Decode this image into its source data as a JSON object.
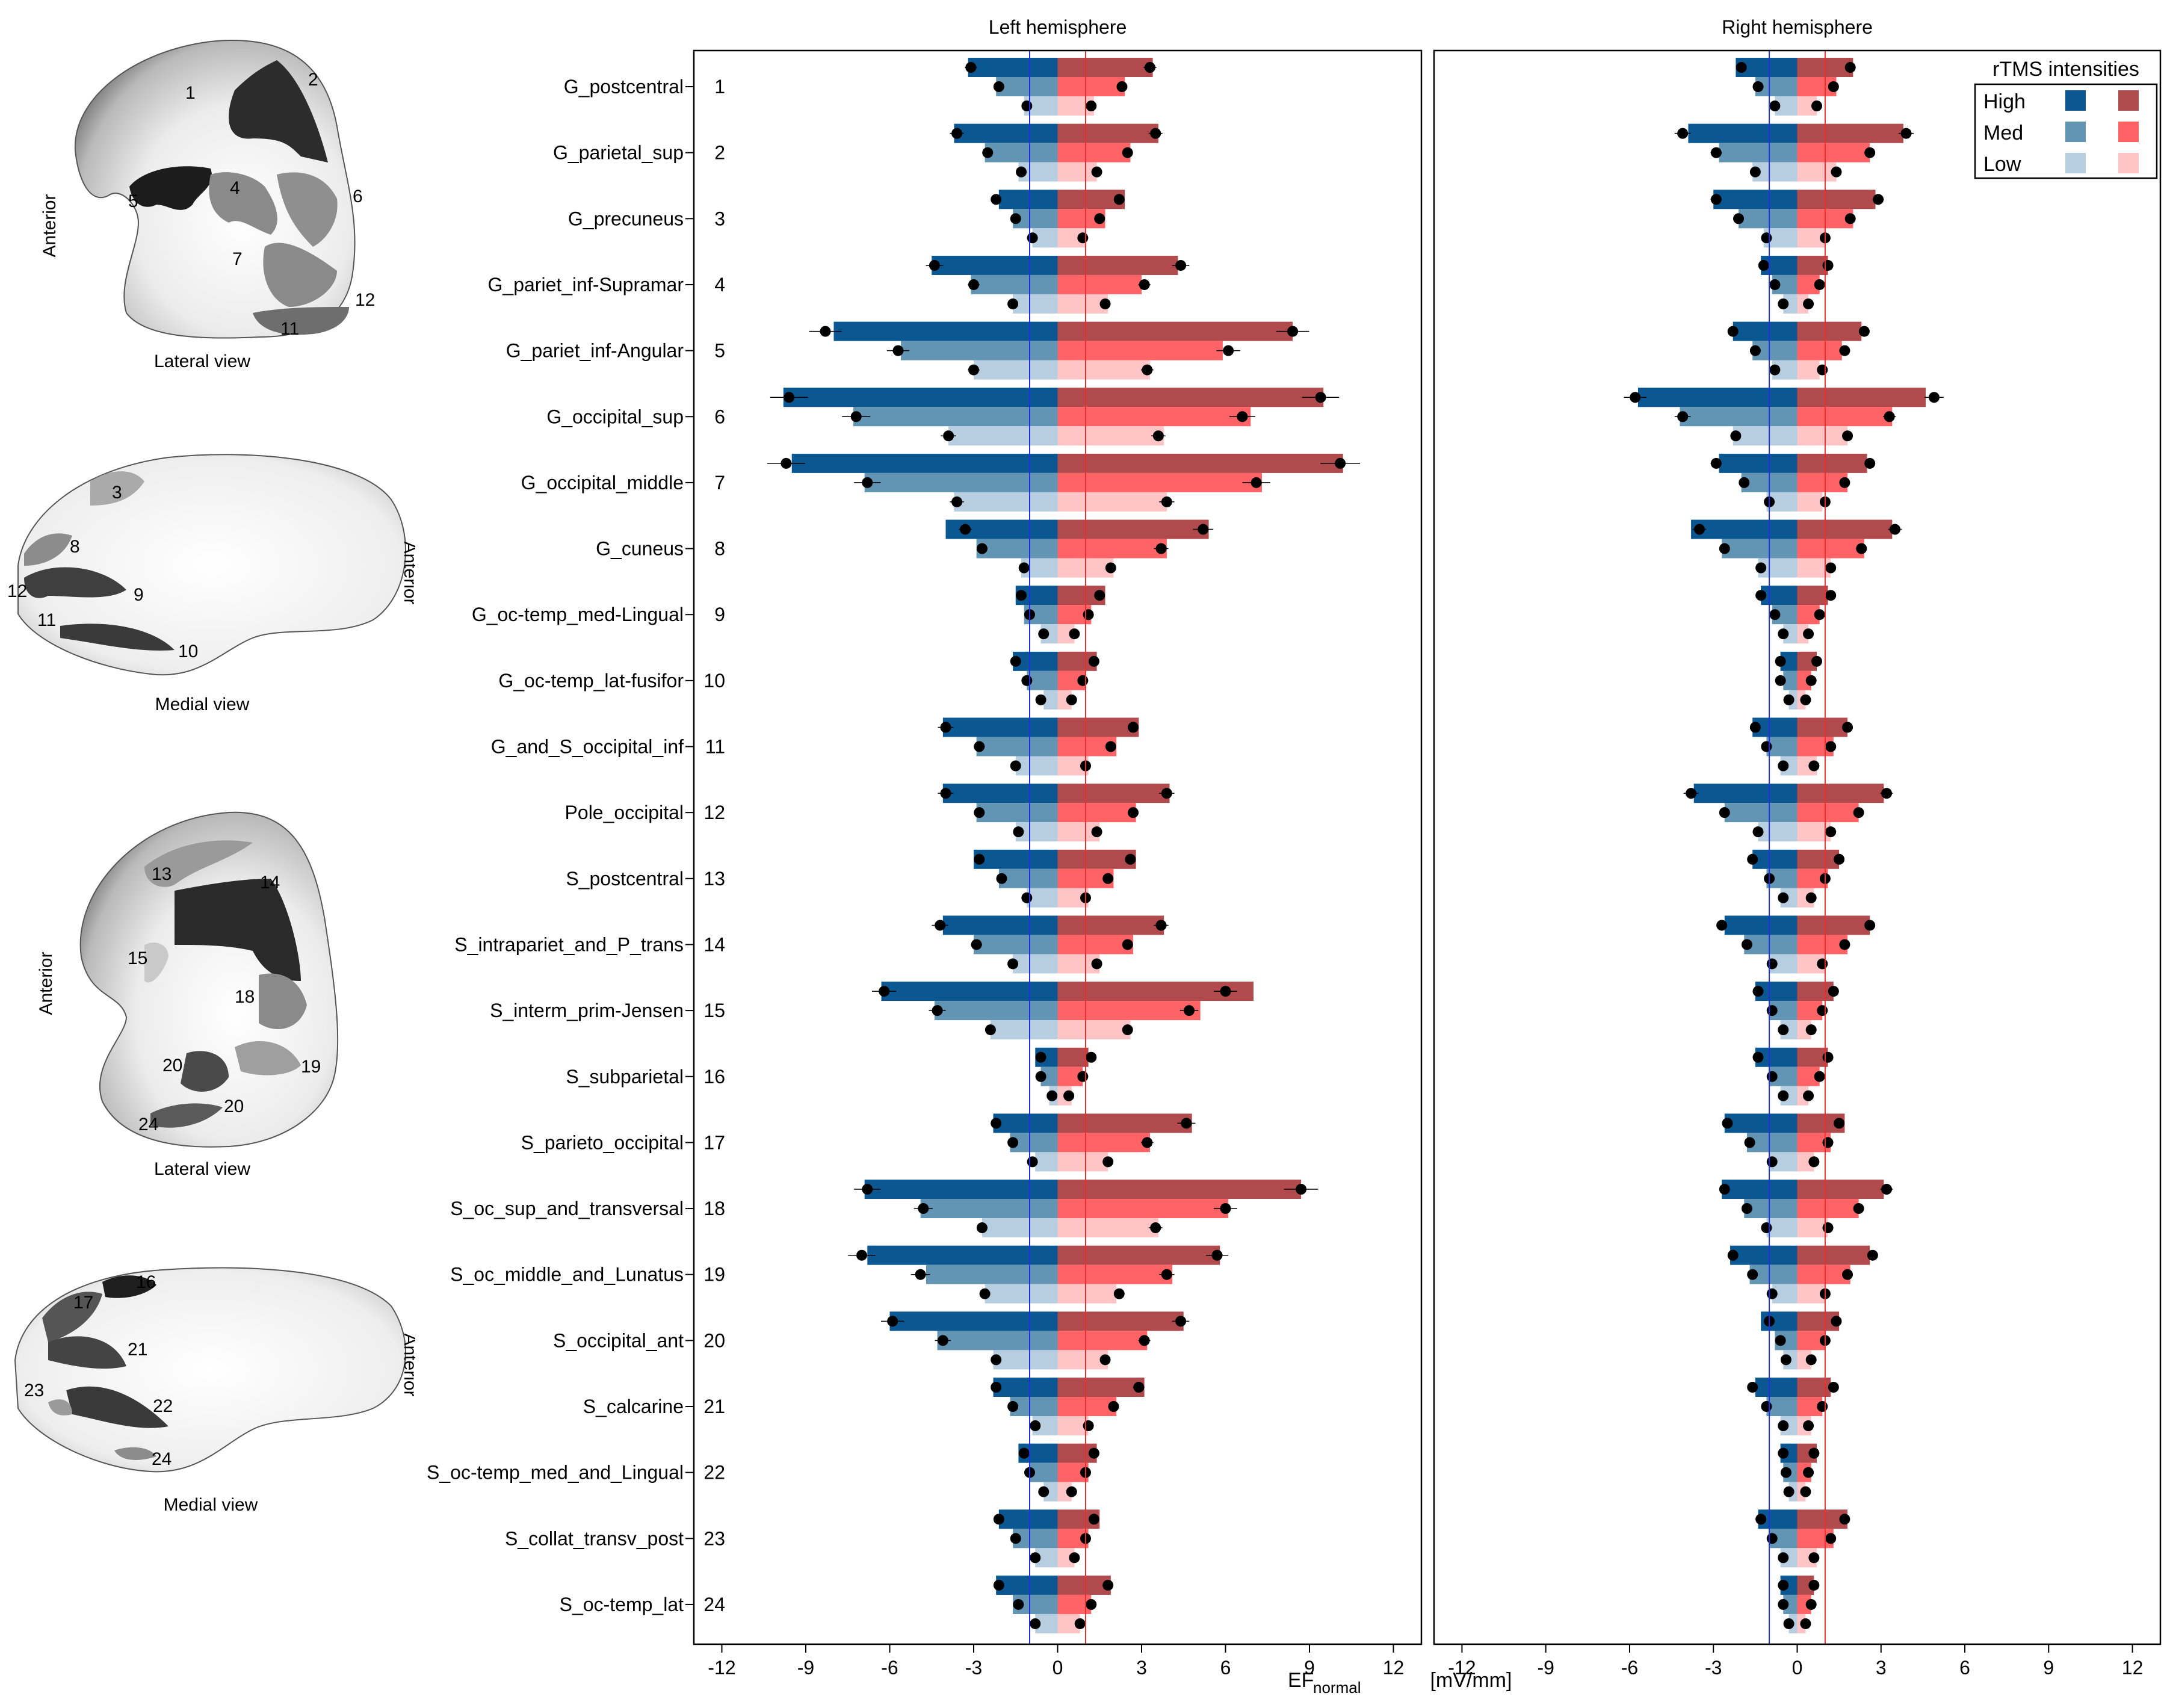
{
  "figure": {
    "xlabel_main": "EF",
    "xlabel_sub": "normal",
    "xlabel_unit": " [mV/mm]",
    "legend_title": "rTMS intensities",
    "legend_levels": [
      "High",
      "Med",
      "Low"
    ]
  },
  "colors": {
    "neg_high": "#0b5791",
    "neg_med": "#6294b4",
    "neg_low": "#b6cee0",
    "pos_high": "#b14a4c",
    "pos_med": "#ff6366",
    "pos_low": "#ffc4c5",
    "line_neg": "#2030e8",
    "line_pos": "#e83030"
  },
  "brains": {
    "panels": [
      {
        "caption": "Lateral view",
        "side_label": "Anterior",
        "labels": [
          {
            "n": "1"
          },
          {
            "n": "2"
          },
          {
            "n": "4"
          },
          {
            "n": "5"
          },
          {
            "n": "6"
          },
          {
            "n": "7"
          },
          {
            "n": "11"
          },
          {
            "n": "12"
          }
        ]
      },
      {
        "caption": "Medial view",
        "side_label": "Anterior",
        "labels": [
          {
            "n": "3"
          },
          {
            "n": "8"
          },
          {
            "n": "9"
          },
          {
            "n": "10"
          },
          {
            "n": "11"
          },
          {
            "n": "12"
          }
        ]
      },
      {
        "caption": "Lateral view",
        "side_label": "Anterior",
        "labels": [
          {
            "n": "13"
          },
          {
            "n": "14"
          },
          {
            "n": "15"
          },
          {
            "n": "18"
          },
          {
            "n": "19"
          },
          {
            "n": "20"
          },
          {
            "n": "20"
          },
          {
            "n": "24"
          }
        ]
      },
      {
        "caption": "Medial view",
        "side_label": "Anterior",
        "labels": [
          {
            "n": "16"
          },
          {
            "n": "17"
          },
          {
            "n": "21"
          },
          {
            "n": "22"
          },
          {
            "n": "23"
          },
          {
            "n": "24"
          }
        ]
      }
    ]
  },
  "chart_data": [
    {
      "type": "bar",
      "orientation": "horizontal",
      "title": "Left hemisphere",
      "xlim": [
        -13,
        13
      ],
      "xticks": [
        "-12",
        "-9",
        "-6",
        "-3",
        "0",
        "3",
        "6",
        "9",
        "12"
      ],
      "ref_lines": [
        -1,
        1
      ],
      "grid": false,
      "categories": [
        "G_postcentral",
        "G_parietal_sup",
        "G_precuneus",
        "G_pariet_inf-Supramar",
        "G_pariet_inf-Angular",
        "G_occipital_sup",
        "G_occipital_middle",
        "G_cuneus",
        "G_oc-temp_med-Lingual",
        "G_oc-temp_lat-fusifor",
        "G_and_S_occipital_inf",
        "Pole_occipital",
        "S_postcentral",
        "S_intrapariet_and_P_trans",
        "S_interm_prim-Jensen",
        "S_subparietal",
        "S_parieto_occipital",
        "S_oc_sup_and_transversal",
        "S_oc_middle_and_Lunatus",
        "S_occipital_ant",
        "S_calcarine",
        "S_oc-temp_med_and_Lingual",
        "S_collat_transv_post",
        "S_oc-temp_lat"
      ],
      "row_numbers": [
        "1",
        "2",
        "3",
        "4",
        "5",
        "6",
        "7",
        "8",
        "9",
        "10",
        "11",
        "12",
        "13",
        "14",
        "15",
        "16",
        "17",
        "18",
        "19",
        "20",
        "21",
        "22",
        "23",
        "24"
      ],
      "series": [
        {
          "name": "High",
          "side": "negative",
          "bar": [
            -3.2,
            -3.7,
            -2.1,
            -4.5,
            -8.0,
            -9.8,
            -9.5,
            -4.0,
            -1.5,
            -1.6,
            -4.1,
            -4.1,
            -3.0,
            -4.1,
            -6.3,
            -0.8,
            -2.3,
            -6.9,
            -6.8,
            -6.0,
            -2.3,
            -1.4,
            -2.1,
            -2.2
          ],
          "point": [
            -3.1,
            -3.6,
            -2.2,
            -4.4,
            -8.3,
            -9.6,
            -9.7,
            -3.3,
            -1.3,
            -1.5,
            -4.0,
            -4.0,
            -2.8,
            -4.2,
            -6.2,
            -0.6,
            -2.2,
            -6.8,
            -7.0,
            -5.9,
            -2.2,
            -1.2,
            -2.1,
            -2.1
          ]
        },
        {
          "name": "Med",
          "side": "negative",
          "bar": [
            -2.2,
            -2.6,
            -1.6,
            -3.1,
            -5.6,
            -7.3,
            -6.9,
            -2.9,
            -1.2,
            -1.1,
            -2.9,
            -2.9,
            -2.1,
            -3.0,
            -4.4,
            -0.6,
            -1.7,
            -4.9,
            -4.7,
            -4.3,
            -1.7,
            -1.0,
            -1.6,
            -1.6
          ],
          "point": [
            -2.1,
            -2.5,
            -1.5,
            -3.0,
            -5.7,
            -7.2,
            -6.8,
            -2.7,
            -1.0,
            -1.1,
            -2.8,
            -2.8,
            -2.0,
            -2.9,
            -4.3,
            -0.6,
            -1.6,
            -4.8,
            -4.9,
            -4.1,
            -1.6,
            -1.0,
            -1.5,
            -1.4
          ]
        },
        {
          "name": "Low",
          "side": "negative",
          "bar": [
            -1.2,
            -1.4,
            -0.9,
            -1.6,
            -3.0,
            -3.9,
            -3.7,
            -1.3,
            -0.6,
            -0.5,
            -1.5,
            -1.5,
            -1.1,
            -1.6,
            -2.4,
            -0.3,
            -0.8,
            -2.7,
            -2.6,
            -2.3,
            -0.9,
            -0.5,
            -0.8,
            -0.8
          ],
          "point": [
            -1.1,
            -1.3,
            -0.9,
            -1.6,
            -3.0,
            -3.9,
            -3.6,
            -1.2,
            -0.5,
            -0.6,
            -1.5,
            -1.4,
            -1.1,
            -1.6,
            -2.4,
            -0.2,
            -0.9,
            -2.7,
            -2.6,
            -2.2,
            -0.8,
            -0.5,
            -0.8,
            -0.8
          ]
        },
        {
          "name": "High",
          "side": "positive",
          "bar": [
            3.4,
            3.6,
            2.4,
            4.3,
            8.4,
            9.5,
            10.2,
            5.4,
            1.7,
            1.4,
            2.9,
            4.0,
            2.8,
            3.8,
            7.0,
            1.1,
            4.8,
            8.7,
            5.8,
            4.5,
            3.1,
            1.4,
            1.5,
            1.9
          ],
          "point": [
            3.3,
            3.5,
            2.2,
            4.4,
            8.4,
            9.4,
            10.1,
            5.2,
            1.5,
            1.3,
            2.7,
            3.9,
            2.6,
            3.7,
            6.0,
            1.2,
            4.6,
            8.7,
            5.7,
            4.4,
            2.9,
            1.3,
            1.3,
            1.8
          ]
        },
        {
          "name": "Med",
          "side": "positive",
          "bar": [
            2.4,
            2.6,
            1.7,
            3.0,
            5.9,
            6.9,
            7.3,
            3.9,
            1.2,
            1.0,
            2.1,
            2.8,
            2.0,
            2.7,
            5.1,
            0.9,
            3.3,
            6.1,
            4.1,
            3.2,
            2.1,
            1.1,
            1.1,
            1.2
          ],
          "point": [
            2.3,
            2.5,
            1.5,
            3.1,
            6.1,
            6.6,
            7.1,
            3.7,
            1.1,
            0.9,
            1.9,
            2.7,
            1.8,
            2.5,
            4.7,
            0.9,
            3.2,
            6.0,
            3.9,
            3.1,
            2.0,
            1.0,
            1.0,
            1.2
          ]
        },
        {
          "name": "Low",
          "side": "positive",
          "bar": [
            1.3,
            1.4,
            1.0,
            1.8,
            3.3,
            3.8,
            3.9,
            2.0,
            0.6,
            0.5,
            1.1,
            1.5,
            1.1,
            1.5,
            2.6,
            0.5,
            1.8,
            3.6,
            2.1,
            1.8,
            1.1,
            0.5,
            0.6,
            0.8
          ],
          "point": [
            1.2,
            1.4,
            0.9,
            1.7,
            3.2,
            3.6,
            3.9,
            1.9,
            0.6,
            0.5,
            1.0,
            1.4,
            1.0,
            1.4,
            2.5,
            0.4,
            1.8,
            3.5,
            2.2,
            1.7,
            1.1,
            0.5,
            0.6,
            0.8
          ]
        }
      ]
    },
    {
      "type": "bar",
      "orientation": "horizontal",
      "title": "Right hemisphere",
      "xlim": [
        -13,
        13
      ],
      "xticks": [
        "-12",
        "-9",
        "-6",
        "-3",
        "0",
        "3",
        "6",
        "9",
        "12"
      ],
      "ref_lines": [
        -1,
        1
      ],
      "grid": false,
      "legend_position": "top-right",
      "categories": [
        "G_postcentral",
        "G_parietal_sup",
        "G_precuneus",
        "G_pariet_inf-Supramar",
        "G_pariet_inf-Angular",
        "G_occipital_sup",
        "G_occipital_middle",
        "G_cuneus",
        "G_oc-temp_med-Lingual",
        "G_oc-temp_lat-fusifor",
        "G_and_S_occipital_inf",
        "Pole_occipital",
        "S_postcentral",
        "S_intrapariet_and_P_trans",
        "S_interm_prim-Jensen",
        "S_subparietal",
        "S_parieto_occipital",
        "S_oc_sup_and_transversal",
        "S_oc_middle_and_Lunatus",
        "S_occipital_ant",
        "S_calcarine",
        "S_oc-temp_med_and_Lingual",
        "S_collat_transv_post",
        "S_oc-temp_lat"
      ],
      "series": [
        {
          "name": "High",
          "side": "negative",
          "bar": [
            -2.2,
            -3.9,
            -3.0,
            -1.3,
            -2.3,
            -5.7,
            -2.8,
            -3.8,
            -1.3,
            -0.6,
            -1.6,
            -3.7,
            -1.6,
            -2.6,
            -1.5,
            -1.5,
            -2.6,
            -2.7,
            -2.4,
            -1.3,
            -1.5,
            -0.6,
            -1.4,
            -0.6
          ],
          "point": [
            -2.0,
            -4.1,
            -2.9,
            -1.2,
            -2.3,
            -5.8,
            -2.9,
            -3.5,
            -1.3,
            -0.6,
            -1.5,
            -3.8,
            -1.6,
            -2.7,
            -1.4,
            -1.4,
            -2.5,
            -2.6,
            -2.3,
            -1.0,
            -1.6,
            -0.5,
            -1.3,
            -0.5
          ]
        },
        {
          "name": "Med",
          "side": "negative",
          "bar": [
            -1.5,
            -2.8,
            -2.1,
            -0.9,
            -1.6,
            -4.2,
            -2.0,
            -2.7,
            -0.9,
            -0.5,
            -1.1,
            -2.6,
            -1.1,
            -1.9,
            -1.0,
            -1.0,
            -1.8,
            -1.9,
            -1.7,
            -0.8,
            -1.1,
            -0.5,
            -1.0,
            -0.5
          ],
          "point": [
            -1.4,
            -2.9,
            -2.1,
            -0.8,
            -1.5,
            -4.1,
            -1.9,
            -2.6,
            -0.8,
            -0.6,
            -1.1,
            -2.6,
            -1.0,
            -1.8,
            -0.9,
            -0.9,
            -1.7,
            -1.8,
            -1.6,
            -0.6,
            -1.1,
            -0.4,
            -0.9,
            -0.5
          ]
        },
        {
          "name": "Low",
          "side": "negative",
          "bar": [
            -0.8,
            -1.6,
            -1.2,
            -0.5,
            -0.9,
            -2.3,
            -1.1,
            -1.4,
            -0.5,
            -0.3,
            -0.6,
            -1.4,
            -0.6,
            -1.0,
            -0.6,
            -0.6,
            -1.0,
            -1.1,
            -0.9,
            -0.5,
            -0.6,
            -0.3,
            -0.6,
            -0.3
          ],
          "point": [
            -0.8,
            -1.5,
            -1.1,
            -0.5,
            -0.8,
            -2.2,
            -1.0,
            -1.3,
            -0.5,
            -0.3,
            -0.5,
            -1.4,
            -0.5,
            -0.9,
            -0.5,
            -0.5,
            -0.9,
            -1.1,
            -0.9,
            -0.4,
            -0.5,
            -0.3,
            -0.5,
            -0.3
          ]
        },
        {
          "name": "High",
          "side": "positive",
          "bar": [
            2.0,
            3.8,
            2.8,
            1.1,
            2.3,
            4.6,
            2.5,
            3.4,
            1.1,
            0.7,
            1.8,
            3.1,
            1.5,
            2.6,
            1.3,
            1.1,
            1.7,
            3.1,
            2.6,
            1.5,
            1.2,
            0.7,
            1.8,
            0.6
          ],
          "point": [
            1.9,
            3.9,
            2.9,
            1.1,
            2.4,
            4.9,
            2.6,
            3.5,
            1.2,
            0.7,
            1.8,
            3.2,
            1.5,
            2.6,
            1.3,
            1.1,
            1.5,
            3.2,
            2.7,
            1.4,
            1.3,
            0.6,
            1.7,
            0.6
          ]
        },
        {
          "name": "Med",
          "side": "positive",
          "bar": [
            1.4,
            2.6,
            2.0,
            0.8,
            1.6,
            3.4,
            1.8,
            2.4,
            0.8,
            0.5,
            1.3,
            2.2,
            1.1,
            1.8,
            0.9,
            0.8,
            1.2,
            2.2,
            1.9,
            1.0,
            0.9,
            0.5,
            1.3,
            0.5
          ],
          "point": [
            1.3,
            2.6,
            1.9,
            0.8,
            1.7,
            3.3,
            1.7,
            2.3,
            0.8,
            0.5,
            1.2,
            2.2,
            1.0,
            1.7,
            0.9,
            0.8,
            1.1,
            2.2,
            1.8,
            1.0,
            0.9,
            0.4,
            1.2,
            0.5
          ]
        },
        {
          "name": "Low",
          "side": "positive",
          "bar": [
            0.7,
            1.4,
            1.0,
            0.4,
            0.8,
            1.8,
            0.9,
            1.2,
            0.4,
            0.3,
            0.7,
            1.2,
            0.6,
            1.0,
            0.5,
            0.4,
            0.6,
            1.1,
            1.0,
            0.5,
            0.5,
            0.3,
            0.7,
            0.3
          ],
          "point": [
            0.7,
            1.4,
            1.0,
            0.4,
            0.9,
            1.8,
            1.0,
            1.2,
            0.4,
            0.3,
            0.6,
            1.2,
            0.5,
            0.9,
            0.5,
            0.4,
            0.6,
            1.1,
            1.0,
            0.5,
            0.4,
            0.3,
            0.6,
            0.3
          ]
        }
      ]
    }
  ]
}
